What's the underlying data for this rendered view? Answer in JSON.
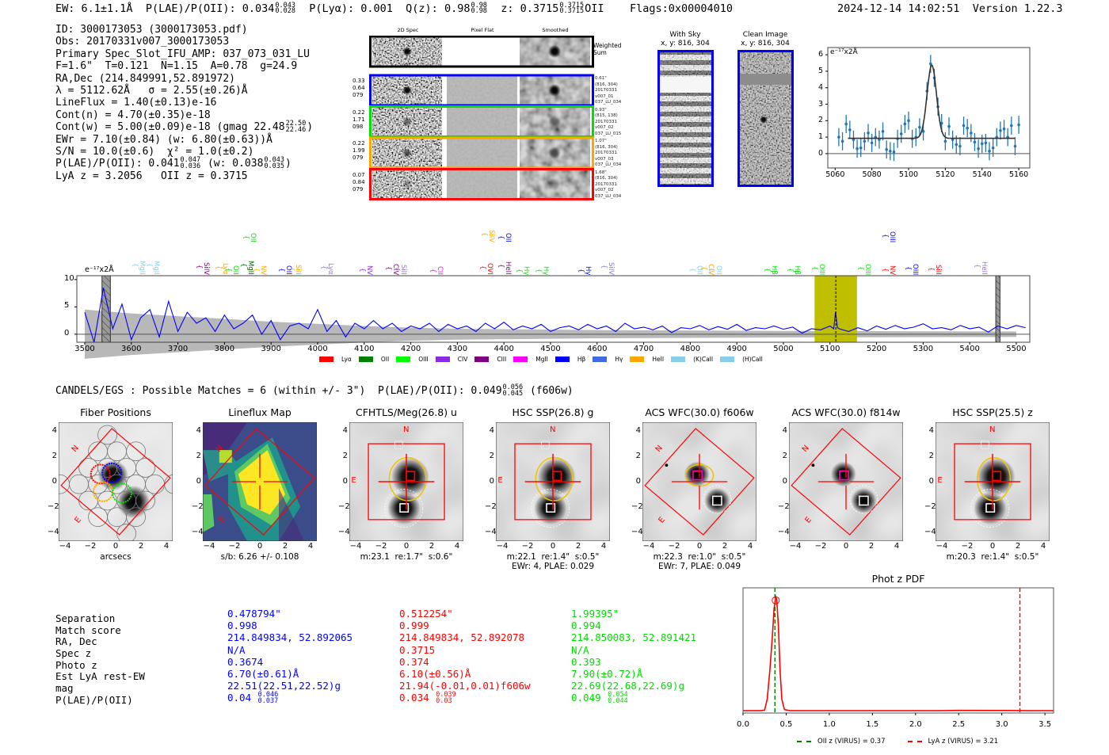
{
  "header": {
    "ew": "EW: 6.1±1.1Å",
    "plae": "P(LAE)/P(OII): 0.034",
    "plae_hi": "0.043",
    "plae_lo": "0.028",
    "plya": "P(Lyα): 0.001",
    "qz": "Q(z): 0.98",
    "qz_hi": "0.98",
    "qz_lo": "0.98",
    "z": "z: 0.3715",
    "z_hi": "0.3715",
    "z_lo": "0.3715",
    "z_line": "OII",
    "flags": "Flags:0x00004010",
    "timestamp": "2024-12-14 14:02:51",
    "version": "Version 1.22.3"
  },
  "info": {
    "lines": [
      "ID: 3000173053 (3000173053.pdf)",
      "Obs: 20170331v007_3000173053",
      "Primary Spec_Slot_IFU_AMP: 037_073_031_LU",
      "F=1.6\"  T=0.121  N=1.15  A=0.78  g=24.9",
      "RA,Dec (214.849991,52.891972)",
      "λ = 5112.62Å   σ = 2.55(±0.26)Å",
      "LineFlux = 1.40(±0.13)e-16",
      "Cont(n) = 4.70(±0.35)e-18"
    ],
    "cont_w": {
      "text": "Cont(w) = 5.00(±0.09)e-18 (gmag 22.48",
      "hi": "22.50",
      "lo": "22.46",
      "end": ")"
    },
    "ewr": "EWr = 7.10(±0.84) (w: 6.80(±0.63))Å",
    "sn": "S/N = 10.0(±0.6)  χ² = 1.0(±0.2)",
    "plae": {
      "text": "P(LAE)/P(OII): 0.041",
      "hi": "0.047",
      "lo": "0.036",
      "w_text": " (w: 0.038",
      "w_hi": "0.043",
      "w_lo": "0.035",
      "end": ")"
    },
    "lyaz": "LyA z = 3.2056   OII z = 0.3715"
  },
  "spec2d": {
    "columns": [
      "2D Spec",
      "Pixel Flat",
      "Smoothed"
    ],
    "weighted_sum": "Weighted Sum",
    "rows": [
      {
        "color": "#0000ff",
        "left": [
          "0.33",
          "0.64",
          "079"
        ],
        "right": [
          "0.61\"",
          "(816, 304)",
          "20170331",
          "v007_01",
          "037_LU_034"
        ]
      },
      {
        "color": "#00e000",
        "left": [
          "0.22",
          "1.71",
          "098"
        ],
        "right": [
          "0.93\"",
          "(815, 138)",
          "20170331",
          "v007_02",
          "037_LU_015"
        ]
      },
      {
        "color": "#ffa500",
        "left": [
          "0.22",
          "1.99",
          "079"
        ],
        "right": [
          "1.07\"",
          "(816, 304)",
          "20170331",
          "v007_03",
          "037_LU_034"
        ]
      },
      {
        "color": "#ff0000",
        "left": [
          "0.07",
          "0.84",
          "079"
        ],
        "right": [
          "1.68\"",
          "(816, 304)",
          "20170331",
          "v007_02",
          "037_LU_034"
        ]
      }
    ]
  },
  "sky": {
    "title": "With Sky",
    "coords": "x, y: 816, 304"
  },
  "clean": {
    "title": "Clean Image",
    "coords": "x, y: 816, 304"
  },
  "chart_data": [
    {
      "id": "line_fit",
      "type": "scatter",
      "ylabel": "e⁻¹⁷x2Å",
      "xlim": [
        5056,
        5166
      ],
      "ylim": [
        -0.87,
        6.44
      ],
      "xticks": [
        5060,
        5080,
        5100,
        5120,
        5140,
        5160
      ],
      "yticks": [
        0,
        1,
        2,
        3,
        4,
        5,
        6
      ],
      "x": [
        5062,
        5064,
        5066,
        5068,
        5070,
        5072,
        5074,
        5076,
        5078,
        5080,
        5082,
        5084,
        5086,
        5088,
        5090,
        5092,
        5094,
        5096,
        5098,
        5100,
        5102,
        5104,
        5106,
        5108,
        5110,
        5112,
        5114,
        5116,
        5118,
        5120,
        5122,
        5124,
        5126,
        5128,
        5130,
        5132,
        5134,
        5136,
        5138,
        5140,
        5142,
        5144,
        5146,
        5148,
        5150,
        5152,
        5154,
        5156,
        5158,
        5160
      ],
      "y": [
        1.0,
        0.75,
        1.8,
        1.45,
        0.85,
        0.3,
        0.35,
        0.75,
        1.25,
        0.65,
        1.0,
        0.85,
        1.35,
        0.25,
        0.15,
        0.1,
        0.9,
        1.2,
        1.8,
        2.0,
        0.9,
        1.0,
        1.6,
        1.35,
        3.8,
        5.45,
        4.6,
        2.85,
        1.85,
        0.75,
        1.65,
        0.85,
        0.55,
        0.45,
        1.7,
        1.55,
        1.25,
        0.7,
        0.3,
        0.6,
        0.65,
        0.15,
        0.35,
        1.0,
        1.4,
        1.5,
        1.0,
        1.7,
        0.45,
        1.75
      ],
      "yerr": 0.55,
      "fit": {
        "center": 5112.62,
        "sigma": 2.55,
        "amplitude": 4.45,
        "continuum": 0.93,
        "range": [
          5067,
          5158
        ]
      }
    },
    {
      "id": "spectrum",
      "type": "line",
      "ylabel": "e⁻¹⁷x2Å",
      "xlim": [
        3483,
        5529
      ],
      "ylim": [
        -1.47,
        10.7
      ],
      "xticks": [
        3500,
        3600,
        3700,
        3800,
        3900,
        4000,
        4100,
        4200,
        4300,
        4400,
        4500,
        4600,
        4700,
        4800,
        4900,
        5000,
        5100,
        5200,
        5300,
        5400,
        5500
      ],
      "yticks": [
        0,
        5,
        10
      ],
      "x": [
        3500,
        3520,
        3540,
        3560,
        3580,
        3600,
        3620,
        3640,
        3660,
        3680,
        3700,
        3720,
        3740,
        3760,
        3780,
        3800,
        3820,
        3840,
        3860,
        3880,
        3900,
        3920,
        3940,
        3960,
        3980,
        4000,
        4020,
        4040,
        4060,
        4080,
        4100,
        4120,
        4140,
        4160,
        4180,
        4200,
        4220,
        4240,
        4260,
        4280,
        4300,
        4320,
        4340,
        4360,
        4380,
        4400,
        4420,
        4440,
        4460,
        4480,
        4500,
        4520,
        4540,
        4560,
        4580,
        4600,
        4620,
        4640,
        4660,
        4680,
        4700,
        4720,
        4740,
        4760,
        4780,
        4800,
        4820,
        4840,
        4860,
        4880,
        4900,
        4920,
        4940,
        4960,
        4980,
        5000,
        5020,
        5040,
        5060,
        5080,
        5100,
        5108,
        5112,
        5116,
        5120,
        5140,
        5160,
        5180,
        5200,
        5220,
        5240,
        5260,
        5280,
        5300,
        5320,
        5340,
        5360,
        5380,
        5400,
        5420,
        5440,
        5460,
        5480,
        5500,
        5520
      ],
      "y": [
        4.0,
        -1.5,
        8.5,
        1.0,
        5.5,
        -1.0,
        3.0,
        4.5,
        -0.5,
        6.0,
        0.5,
        4.0,
        2.0,
        3.0,
        0.5,
        3.5,
        1.0,
        2.0,
        3.5,
        0.0,
        2.5,
        -1.0,
        1.5,
        2.0,
        1.0,
        4.5,
        0.5,
        2.5,
        -0.5,
        2.0,
        1.0,
        2.5,
        1.0,
        2.0,
        0.5,
        1.5,
        1.0,
        2.0,
        0.5,
        1.8,
        1.0,
        1.5,
        0.5,
        2.0,
        1.0,
        2.2,
        0.8,
        1.5,
        1.0,
        1.8,
        0.5,
        1.2,
        1.5,
        0.8,
        1.8,
        1.0,
        1.5,
        0.5,
        2.0,
        1.0,
        1.3,
        0.8,
        1.5,
        0.3,
        1.2,
        1.0,
        1.6,
        0.8,
        1.4,
        0.9,
        1.8,
        0.7,
        1.2,
        1.0,
        1.5,
        0.9,
        1.3,
        0.2,
        1.0,
        0.8,
        1.5,
        1.0,
        4.1,
        1.2,
        1.0,
        0.5,
        1.2,
        0.6,
        1.5,
        0.9,
        1.6,
        1.0,
        1.3,
        1.9,
        1.0,
        1.2,
        0.8,
        1.6,
        1.0,
        1.3,
        0.4,
        1.5,
        1.0,
        1.6,
        1.2
      ],
      "error_band": [
        [
          3500,
          4.5
        ],
        [
          3600,
          3.8
        ],
        [
          3700,
          3.3
        ],
        [
          3800,
          2.8
        ],
        [
          3900,
          2.3
        ],
        [
          4000,
          1.9
        ],
        [
          4100,
          1.5
        ],
        [
          4200,
          1.2
        ],
        [
          4300,
          1.0
        ],
        [
          4600,
          0.75
        ],
        [
          5000,
          0.6
        ],
        [
          5500,
          0.5
        ]
      ],
      "masked": [
        [
          3537,
          3555
        ],
        [
          5456,
          5465
        ]
      ],
      "highlight": [
        5067,
        5158
      ],
      "line_center": 5112.62,
      "line_labels": [
        {
          "name": "MgII",
          "wave": 3607,
          "color": "#87ceeb",
          "row": 0
        },
        {
          "name": "MgII",
          "wave": 3638,
          "color": "#87ceeb",
          "row": 0
        },
        {
          "name": "SiIV",
          "wave": 3745,
          "color": "#800080",
          "row": 0
        },
        {
          "name": "Lyα",
          "wave": 3786,
          "color": "#ffa500",
          "row": 0
        },
        {
          "name": "OII",
          "wave": 3808,
          "color": "#00e000",
          "row": 0
        },
        {
          "name": "MgII",
          "wave": 3840,
          "color": "#006400",
          "row": 0
        },
        {
          "name": "NV",
          "wave": 3867,
          "color": "#ffa500",
          "row": 0
        },
        {
          "name": "OII",
          "wave": 3922,
          "color": "#0000ff",
          "row": 0
        },
        {
          "name": "SiII",
          "wave": 3942,
          "color": "#ffa500",
          "row": 0
        },
        {
          "name": "Lyα",
          "wave": 4012,
          "color": "#9370db",
          "row": 0
        },
        {
          "name": "NV",
          "wave": 4095,
          "color": "#8a2be2",
          "row": 0
        },
        {
          "name": "CIV",
          "wave": 4151,
          "color": "#800080",
          "row": 0
        },
        {
          "name": "SiII",
          "wave": 4168,
          "color": "#9370db",
          "row": 0
        },
        {
          "name": "CII",
          "wave": 4247,
          "color": "#ff00ff",
          "row": 0
        },
        {
          "name": "OVI",
          "wave": 4354,
          "color": "#ff0000",
          "row": 0
        },
        {
          "name": "HeII",
          "wave": 4393,
          "color": "#800080",
          "row": 0
        },
        {
          "name": "Hγ",
          "wave": 4432,
          "color": "#00e000",
          "row": 0
        },
        {
          "name": "Hγ",
          "wave": 4474,
          "color": "#00e000",
          "row": 0
        },
        {
          "name": "Hγ",
          "wave": 4565,
          "color": "#0000cd",
          "row": 0
        },
        {
          "name": "SiIV",
          "wave": 4614,
          "color": "#9370db",
          "row": 0
        },
        {
          "name": "OII",
          "wave": 4804,
          "color": "#87ceeb",
          "row": 0
        },
        {
          "name": "CIV",
          "wave": 4828,
          "color": "#ffa500",
          "row": 0
        },
        {
          "name": "OII",
          "wave": 4845,
          "color": "#87ceeb",
          "row": 0
        },
        {
          "name": "Hβ",
          "wave": 4964,
          "color": "#00e000",
          "row": 0
        },
        {
          "name": "Hβ",
          "wave": 5014,
          "color": "#00e000",
          "row": 0
        },
        {
          "name": "OIII",
          "wave": 5066,
          "color": "#00e000",
          "row": 0
        },
        {
          "name": "OIII",
          "wave": 5165,
          "color": "#00e000",
          "row": 0
        },
        {
          "name": "NV",
          "wave": 5218,
          "color": "#ff0000",
          "row": 0
        },
        {
          "name": "OIII",
          "wave": 5267,
          "color": "#0000ff",
          "row": 0
        },
        {
          "name": "SiII",
          "wave": 5316,
          "color": "#ff0000",
          "row": 0
        },
        {
          "name": "HeII",
          "wave": 5415,
          "color": "#9370db",
          "row": 0
        },
        {
          "name": "OII",
          "wave": 3845,
          "color": "#00e000",
          "row": 1
        },
        {
          "name": "SiIV",
          "wave": 4357,
          "color": "#ffa500",
          "row": 1
        },
        {
          "name": "OII",
          "wave": 4393,
          "color": "#0000ff",
          "row": 1
        },
        {
          "name": "OIII",
          "wave": 5218,
          "color": "#0000ff",
          "row": 1
        }
      ],
      "legend": [
        {
          "name": "Lyα",
          "color": "#ff0000"
        },
        {
          "name": "OII",
          "color": "#008000"
        },
        {
          "name": "OIII",
          "color": "#00ff00"
        },
        {
          "name": "CIV",
          "color": "#8a2be2"
        },
        {
          "name": "CIII",
          "color": "#800080"
        },
        {
          "name": "MgII",
          "color": "#ff00ff"
        },
        {
          "name": "Hβ",
          "color": "#0000ff"
        },
        {
          "name": "Hγ",
          "color": "#4169e1"
        },
        {
          "name": "HeII",
          "color": "#ffa500"
        },
        {
          "name": "(K)CaII",
          "color": "#87ceeb"
        },
        {
          "name": "(H)CaII",
          "color": "#87ceeb"
        }
      ]
    },
    {
      "id": "photz_pdf",
      "type": "line",
      "title": "Phot z PDF",
      "xlim": [
        0,
        3.6
      ],
      "ylim": [
        -0.02,
        1.08
      ],
      "xticks": [
        "0.0",
        "0.5",
        "1.0",
        "1.5",
        "2.0",
        "2.5",
        "3.0",
        "3.5"
      ],
      "x": [
        0,
        0.2,
        0.25,
        0.28,
        0.31,
        0.34,
        0.36,
        0.38,
        0.39,
        0.41,
        0.43,
        0.45,
        0.48,
        0.55,
        2.3,
        2.5,
        3.0,
        3.3,
        3.6
      ],
      "y": [
        0,
        0,
        0.005,
        0.1,
        0.35,
        0.65,
        0.9,
        1.0,
        0.98,
        0.75,
        0.35,
        0.1,
        0.01,
        0,
        0,
        0.003,
        0.002,
        0,
        0
      ],
      "peak_marker": 0.37,
      "vlines": [
        {
          "label": "OII z (VIRUS) = 0.37",
          "value": 0.37,
          "color": "#008000"
        },
        {
          "label": "LyA z (VIRUS) = 3.21",
          "value": 3.21,
          "color": "#ff0000"
        }
      ]
    }
  ],
  "candels": {
    "text": "CANDELS/EGS : Possible Matches = 6 (within +/- 3\")  P(LAE)/P(OII): 0.049",
    "hi": "0.056",
    "lo": "0.045",
    "end": "(f606w)"
  },
  "cutouts": {
    "ticks": [
      "−4",
      "−2",
      "0",
      "2",
      "4"
    ],
    "north": "N",
    "east": "E",
    "panels": [
      {
        "title": "Fiber Positions",
        "caption1": "arcsecs",
        "caption2": ""
      },
      {
        "title": "Lineflux Map",
        "caption1": "s/b: 6.26 +/- 0.108",
        "caption2": ""
      },
      {
        "title": "CFHTLS/Meg(26.8) u",
        "caption1": "m:23.1  re:1.7\"  s:0.6\"",
        "caption2": ""
      },
      {
        "title": "HSC SSP(26.8) g",
        "caption1": "m:22.1  re:1.4\"  s:0.5\"",
        "caption2": "EWr: 4, PLAE: 0.029"
      },
      {
        "title": "ACS WFC(30.0) f606w",
        "caption1": "m:22.3  re:1.0\"  s:0.5\"",
        "caption2": "EWr: 7, PLAE: 0.049"
      },
      {
        "title": "ACS WFC(30.0) f814w",
        "caption1": "",
        "caption2": ""
      },
      {
        "title": "HSC SSP(25.5) z",
        "caption1": "m:20.3  re:1.4\"  s:0.5\"",
        "caption2": ""
      }
    ]
  },
  "matches": {
    "labels": [
      "Separation",
      "Match score",
      "RA, Dec",
      "Spec z",
      "Photo z",
      "Est LyA rest-EW",
      "mag",
      "P(LAE)/P(OII)"
    ],
    "columns": [
      {
        "color": "#0000ff",
        "values": [
          "0.478794\"",
          "0.998",
          "214.849834, 52.892065",
          "N/A",
          "0.3674",
          "6.70(±0.61)Å",
          "22.51(22.51,22.52)g"
        ],
        "plae": "0.04",
        "hi": "0.046",
        "lo": "0.037"
      },
      {
        "color": "#ff0000",
        "values": [
          "0.512254\"",
          "0.999",
          "214.849834, 52.892078",
          "0.3715",
          "0.374",
          "6.10(±0.56)Å",
          "21.94(-0.01,0.01)f606w"
        ],
        "plae": "0.034",
        "hi": "0.039",
        "lo": "0.03"
      },
      {
        "color": "#00dd00",
        "values": [
          "1.99395\"",
          "0.994",
          "214.850083, 52.891421",
          "N/A",
          "0.393",
          "7.90(±0.72)Å",
          "22.69(22.68,22.69)g"
        ],
        "plae": "0.049",
        "hi": "0.054",
        "lo": "0.044"
      }
    ]
  }
}
